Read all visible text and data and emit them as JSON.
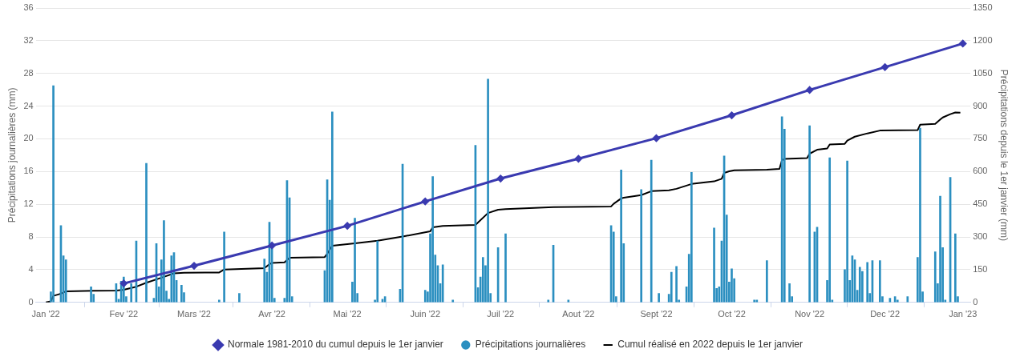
{
  "chart_data": {
    "type": "bar",
    "ylabel": "Précipitations journalières (mm)",
    "y2label": "Précipitations depuis le 1er janvier (mm)",
    "xlim": [
      "2021-12-28",
      "2023-01-04"
    ],
    "xticks": [
      {
        "value": "2022-01-01",
        "label": "Jan '22"
      },
      {
        "value": "2022-02-01",
        "label": "Fev '22"
      },
      {
        "value": "2022-03-01",
        "label": "Mars '22"
      },
      {
        "value": "2022-04-01",
        "label": "Avr '22"
      },
      {
        "value": "2022-05-01",
        "label": "Mai '22"
      },
      {
        "value": "2022-06-01",
        "label": "Juin '22"
      },
      {
        "value": "2022-07-01",
        "label": "Juil '22"
      },
      {
        "value": "2022-08-01",
        "label": "Aout '22"
      },
      {
        "value": "2022-09-01",
        "label": "Sept '22"
      },
      {
        "value": "2022-10-01",
        "label": "Oct '22"
      },
      {
        "value": "2022-11-01",
        "label": "Nov '22"
      },
      {
        "value": "2022-12-01",
        "label": "Dec '22"
      },
      {
        "value": "2023-01-01",
        "label": "Jan '23"
      }
    ],
    "ylim": [
      0,
      36
    ],
    "yticks": [
      0,
      4,
      8,
      12,
      16,
      20,
      24,
      28,
      32,
      36
    ],
    "y2lim": [
      0,
      1350
    ],
    "y2ticks": [
      0,
      150,
      300,
      450,
      600,
      750,
      900,
      1050,
      1200,
      1350
    ],
    "grid": "y",
    "legend": "bottom",
    "series": [
      {
        "name": "Précipitations journalières",
        "color": "#2b8fc0",
        "x": [
          "2022-01-03",
          "2022-01-04",
          "2022-01-07",
          "2022-01-08",
          "2022-01-09",
          "2022-01-19",
          "2022-01-20",
          "2022-01-29",
          "2022-01-30",
          "2022-01-31",
          "2022-02-01",
          "2022-02-02",
          "2022-02-04",
          "2022-02-06",
          "2022-02-10",
          "2022-02-13",
          "2022-02-14",
          "2022-02-15",
          "2022-02-16",
          "2022-02-17",
          "2022-02-18",
          "2022-02-19",
          "2022-02-20",
          "2022-02-21",
          "2022-02-22",
          "2022-02-24",
          "2022-02-25",
          "2022-03-11",
          "2022-03-13",
          "2022-03-19",
          "2022-03-29",
          "2022-03-30",
          "2022-03-31",
          "2022-04-01",
          "2022-04-02",
          "2022-04-06",
          "2022-04-07",
          "2022-04-08",
          "2022-04-09",
          "2022-04-22",
          "2022-04-23",
          "2022-04-24",
          "2022-04-25",
          "2022-05-03",
          "2022-05-04",
          "2022-05-05",
          "2022-05-12",
          "2022-05-13",
          "2022-05-15",
          "2022-05-16",
          "2022-05-22",
          "2022-05-23",
          "2022-06-01",
          "2022-06-02",
          "2022-06-03",
          "2022-06-04",
          "2022-06-05",
          "2022-06-06",
          "2022-06-07",
          "2022-06-08",
          "2022-06-12",
          "2022-06-21",
          "2022-06-22",
          "2022-06-23",
          "2022-06-24",
          "2022-06-25",
          "2022-06-26",
          "2022-06-27",
          "2022-06-30",
          "2022-07-03",
          "2022-07-20",
          "2022-07-22",
          "2022-07-28",
          "2022-08-14",
          "2022-08-15",
          "2022-08-16",
          "2022-08-18",
          "2022-08-19",
          "2022-08-26",
          "2022-08-30",
          "2022-09-02",
          "2022-09-06",
          "2022-09-07",
          "2022-09-09",
          "2022-09-10",
          "2022-09-13",
          "2022-09-14",
          "2022-09-15",
          "2022-09-24",
          "2022-09-25",
          "2022-09-26",
          "2022-09-27",
          "2022-09-28",
          "2022-09-29",
          "2022-09-30",
          "2022-10-01",
          "2022-10-02",
          "2022-10-10",
          "2022-10-11",
          "2022-10-15",
          "2022-10-21",
          "2022-10-22",
          "2022-10-24",
          "2022-10-25",
          "2022-11-01",
          "2022-11-03",
          "2022-11-04",
          "2022-11-08",
          "2022-11-09",
          "2022-11-10",
          "2022-11-15",
          "2022-11-16",
          "2022-11-17",
          "2022-11-18",
          "2022-11-19",
          "2022-11-20",
          "2022-11-21",
          "2022-11-22",
          "2022-11-24",
          "2022-11-25",
          "2022-11-26",
          "2022-11-29",
          "2022-11-30",
          "2022-12-03",
          "2022-12-05",
          "2022-12-06",
          "2022-12-10",
          "2022-12-14",
          "2022-12-15",
          "2022-12-16",
          "2022-12-21",
          "2022-12-22",
          "2022-12-23",
          "2022-12-24",
          "2022-12-25",
          "2022-12-27",
          "2022-12-29",
          "2022-12-30"
        ],
        "values": [
          1.3,
          26.5,
          9.4,
          5.7,
          5.2,
          1.9,
          1.0,
          2.3,
          0.4,
          2.6,
          3.1,
          0.7,
          2.3,
          7.5,
          17.0,
          0.5,
          7.2,
          1.9,
          5.2,
          10.0,
          1.4,
          0.4,
          5.7,
          6.1,
          2.7,
          2.1,
          1.2,
          0.3,
          8.6,
          1.1,
          5.3,
          3.7,
          9.8,
          7.3,
          0.5,
          0.5,
          14.9,
          12.8,
          0.7,
          3.9,
          15.0,
          12.5,
          23.3,
          2.5,
          10.3,
          1.1,
          0.3,
          7.5,
          0.4,
          0.7,
          1.6,
          16.9,
          1.5,
          1.3,
          8.4,
          15.4,
          5.8,
          4.5,
          2.3,
          4.6,
          0.3,
          19.2,
          1.8,
          3.1,
          5.5,
          4.5,
          27.3,
          1.1,
          6.7,
          8.4,
          0.3,
          7.0,
          0.3,
          9.4,
          8.6,
          0.7,
          16.2,
          7.2,
          13.8,
          17.4,
          1.1,
          1.0,
          3.7,
          4.4,
          0.3,
          1.9,
          5.9,
          15.9,
          9.1,
          1.7,
          1.9,
          7.5,
          17.9,
          10.7,
          2.5,
          4.1,
          2.9,
          0.3,
          0.3,
          5.1,
          22.7,
          21.2,
          2.3,
          0.7,
          21.6,
          8.6,
          9.2,
          2.7,
          17.7,
          0.3,
          4.0,
          17.3,
          2.7,
          5.7,
          5.2,
          1.5,
          4.3,
          3.8,
          4.9,
          1.1,
          5.1,
          5.1,
          0.7,
          0.5,
          0.7,
          0.3,
          0.7,
          5.5,
          21.3,
          1.3,
          6.2,
          2.3,
          13.0,
          6.7,
          0.3,
          15.3,
          8.4,
          0.7
        ]
      },
      {
        "name": "Cumul réalisé en 2022 depuis le 1er janvier",
        "type": "line",
        "axis": "y2",
        "color": "#000000",
        "marker": "none",
        "x": [
          "2022-01-01",
          "2022-01-03",
          "2022-01-04",
          "2022-01-07",
          "2022-01-09",
          "2022-01-20",
          "2022-01-29",
          "2022-02-01",
          "2022-02-06",
          "2022-02-10",
          "2022-02-17",
          "2022-02-21",
          "2022-02-25",
          "2022-03-11",
          "2022-03-13",
          "2022-03-29",
          "2022-03-31",
          "2022-04-01",
          "2022-04-06",
          "2022-04-08",
          "2022-04-22",
          "2022-04-23",
          "2022-04-25",
          "2022-05-04",
          "2022-05-13",
          "2022-05-23",
          "2022-06-03",
          "2022-06-04",
          "2022-06-08",
          "2022-06-21",
          "2022-06-26",
          "2022-06-30",
          "2022-07-03",
          "2022-07-22",
          "2022-08-14",
          "2022-08-15",
          "2022-08-18",
          "2022-08-19",
          "2022-08-26",
          "2022-08-30",
          "2022-09-06",
          "2022-09-09",
          "2022-09-15",
          "2022-09-24",
          "2022-09-27",
          "2022-09-28",
          "2022-09-30",
          "2022-10-02",
          "2022-10-15",
          "2022-10-20",
          "2022-10-21",
          "2022-10-22",
          "2022-10-31",
          "2022-11-01",
          "2022-11-04",
          "2022-11-08",
          "2022-11-09",
          "2022-11-15",
          "2022-11-16",
          "2022-11-19",
          "2022-11-24",
          "2022-11-29",
          "2022-12-14",
          "2022-12-15",
          "2022-12-21",
          "2022-12-23",
          "2022-12-24",
          "2022-12-27",
          "2022-12-29",
          "2022-12-31"
        ],
        "values": [
          0,
          5,
          30,
          40,
          51,
          53,
          54,
          58,
          72,
          90,
          117,
          133,
          136,
          137,
          151,
          157,
          175,
          181,
          184,
          205,
          208,
          223,
          260,
          271,
          283,
          302,
          326,
          344,
          351,
          355,
          410,
          425,
          428,
          437,
          440,
          452,
          477,
          480,
          492,
          510,
          514,
          521,
          543,
          555,
          567,
          594,
          601,
          606,
          609,
          612,
          652,
          658,
          662,
          682,
          700,
          706,
          724,
          727,
          742,
          760,
          775,
          788,
          790,
          815,
          819,
          839,
          848,
          863,
          871,
          870
        ]
      },
      {
        "name": "Normale 1981-2010 du cumul depuis le 1er janvier",
        "type": "line",
        "axis": "y2",
        "color": "#3a3ab0",
        "marker": "diamond",
        "x": [
          "2022-02-01",
          "2022-03-01",
          "2022-04-01",
          "2022-05-01",
          "2022-06-01",
          "2022-07-01",
          "2022-08-01",
          "2022-09-01",
          "2022-10-01",
          "2022-11-01",
          "2022-12-01",
          "2023-01-01"
        ],
        "values": [
          87,
          168,
          261,
          351,
          463,
          568,
          659,
          753,
          858,
          974,
          1079,
          1187
        ]
      }
    ]
  }
}
